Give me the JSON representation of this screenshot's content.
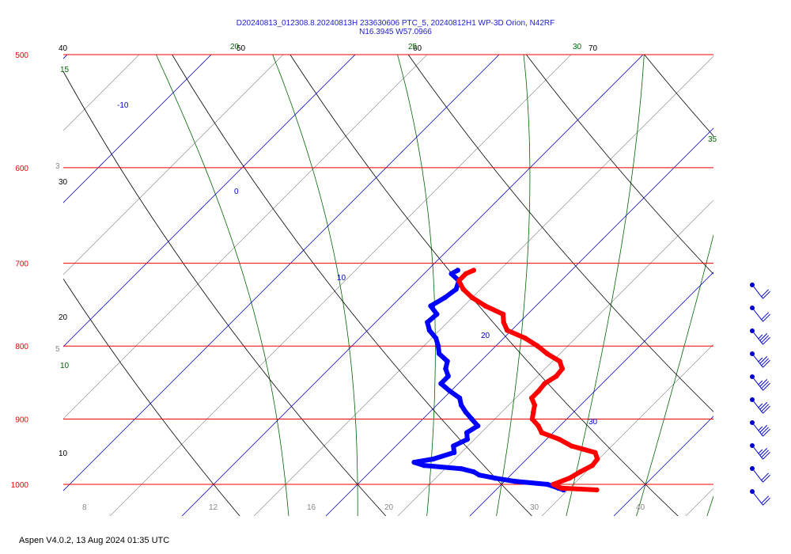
{
  "title_lines": [
    "D20240813_012308.8.20240813H 233630606 PTC_5, 20240812H1 WP-3D Orion, N42RF",
    "N16.3945 W57.0966"
  ],
  "footer": "Aspen V4.0.2, 13 Aug 2024  01:35 UTC",
  "colors": {
    "isobar": "#ee0000",
    "isotherm": "#0000cc",
    "dry_adiabat": "#000000",
    "moist_adiabat": "#006600",
    "mixing_ratio": "#888888",
    "temperature": "#ff0000",
    "dewpoint": "#0000ff",
    "wind": "#0000cc"
  },
  "chart_data": {
    "type": "skew-t log-p",
    "pressure_axis": {
      "labels": [
        "500",
        "600",
        "700",
        "800",
        "900",
        "1000"
      ],
      "values": [
        500,
        600,
        700,
        800,
        900,
        1000
      ],
      "units": "hPa"
    },
    "isotherm_labels": [
      "-10",
      "0",
      "10",
      "20",
      "30"
    ],
    "dry_adiabat_labels": [
      "40",
      "50",
      "60",
      "70",
      "30",
      "20",
      "10"
    ],
    "moist_adiabat_labels": [
      "15",
      "20",
      "25",
      "30",
      "35",
      "10"
    ],
    "mixing_ratio_labels": [
      "3",
      "5",
      "8",
      "12",
      "16",
      "20",
      "30",
      "40"
    ],
    "temperature_profile": [
      [
        1009,
        27.0
      ],
      [
        1006,
        24.4
      ],
      [
        1000,
        23.6
      ],
      [
        990,
        24.3
      ],
      [
        980,
        24.6
      ],
      [
        970,
        25.0
      ],
      [
        960,
        24.9
      ],
      [
        950,
        24.3
      ],
      [
        940,
        22.2
      ],
      [
        930,
        20.9
      ],
      [
        920,
        19.2
      ],
      [
        910,
        18.5
      ],
      [
        900,
        17.6
      ],
      [
        890,
        17.2
      ],
      [
        880,
        16.8
      ],
      [
        870,
        16.1
      ],
      [
        860,
        16.1
      ],
      [
        850,
        16.0
      ],
      [
        840,
        16.3
      ],
      [
        830,
        16.2
      ],
      [
        820,
        15.5
      ],
      [
        810,
        14.1
      ],
      [
        800,
        12.9
      ],
      [
        790,
        11.5
      ],
      [
        780,
        9.7
      ],
      [
        770,
        8.9
      ],
      [
        760,
        8.3
      ],
      [
        750,
        6.5
      ],
      [
        740,
        5.0
      ],
      [
        730,
        3.8
      ],
      [
        720,
        2.9
      ],
      [
        712,
        2.9
      ],
      [
        708,
        3.2
      ]
    ],
    "dewpoint_profile": [
      [
        1009,
        24.7
      ],
      [
        1006,
        24.2
      ],
      [
        1000,
        23.2
      ],
      [
        995,
        20.7
      ],
      [
        990,
        19.1
      ],
      [
        985,
        17.8
      ],
      [
        980,
        17.2
      ],
      [
        975,
        16.1
      ],
      [
        970,
        13.3
      ],
      [
        965,
        12.4
      ],
      [
        960,
        13.5
      ],
      [
        950,
        14.5
      ],
      [
        940,
        14.0
      ],
      [
        930,
        14.5
      ],
      [
        920,
        14.0
      ],
      [
        910,
        14.3
      ],
      [
        900,
        13.4
      ],
      [
        890,
        12.5
      ],
      [
        880,
        11.7
      ],
      [
        870,
        11.1
      ],
      [
        860,
        9.9
      ],
      [
        850,
        8.8
      ],
      [
        840,
        8.8
      ],
      [
        830,
        8.1
      ],
      [
        820,
        7.7
      ],
      [
        810,
        6.6
      ],
      [
        800,
        6.0
      ],
      [
        790,
        5.3
      ],
      [
        780,
        4.3
      ],
      [
        770,
        3.6
      ],
      [
        760,
        3.7
      ],
      [
        750,
        2.7
      ],
      [
        740,
        3.1
      ],
      [
        730,
        3.3
      ],
      [
        720,
        2.9
      ],
      [
        712,
        1.9
      ],
      [
        708,
        2.1
      ]
    ],
    "wind_barbs": [
      {
        "pressure": 711,
        "speed_kt": 20,
        "direction_deg": 100
      },
      {
        "pressure": 735,
        "speed_kt": 20,
        "direction_deg": 100
      },
      {
        "pressure": 760,
        "speed_kt": 25,
        "direction_deg": 100
      },
      {
        "pressure": 790,
        "speed_kt": 25,
        "direction_deg": 100
      },
      {
        "pressure": 820,
        "speed_kt": 25,
        "direction_deg": 100
      },
      {
        "pressure": 850,
        "speed_kt": 25,
        "direction_deg": 100
      },
      {
        "pressure": 885,
        "speed_kt": 25,
        "direction_deg": 100
      },
      {
        "pressure": 920,
        "speed_kt": 25,
        "direction_deg": 100
      },
      {
        "pressure": 955,
        "speed_kt": 20,
        "direction_deg": 100
      },
      {
        "pressure": 995,
        "speed_kt": 20,
        "direction_deg": 100
      }
    ]
  }
}
